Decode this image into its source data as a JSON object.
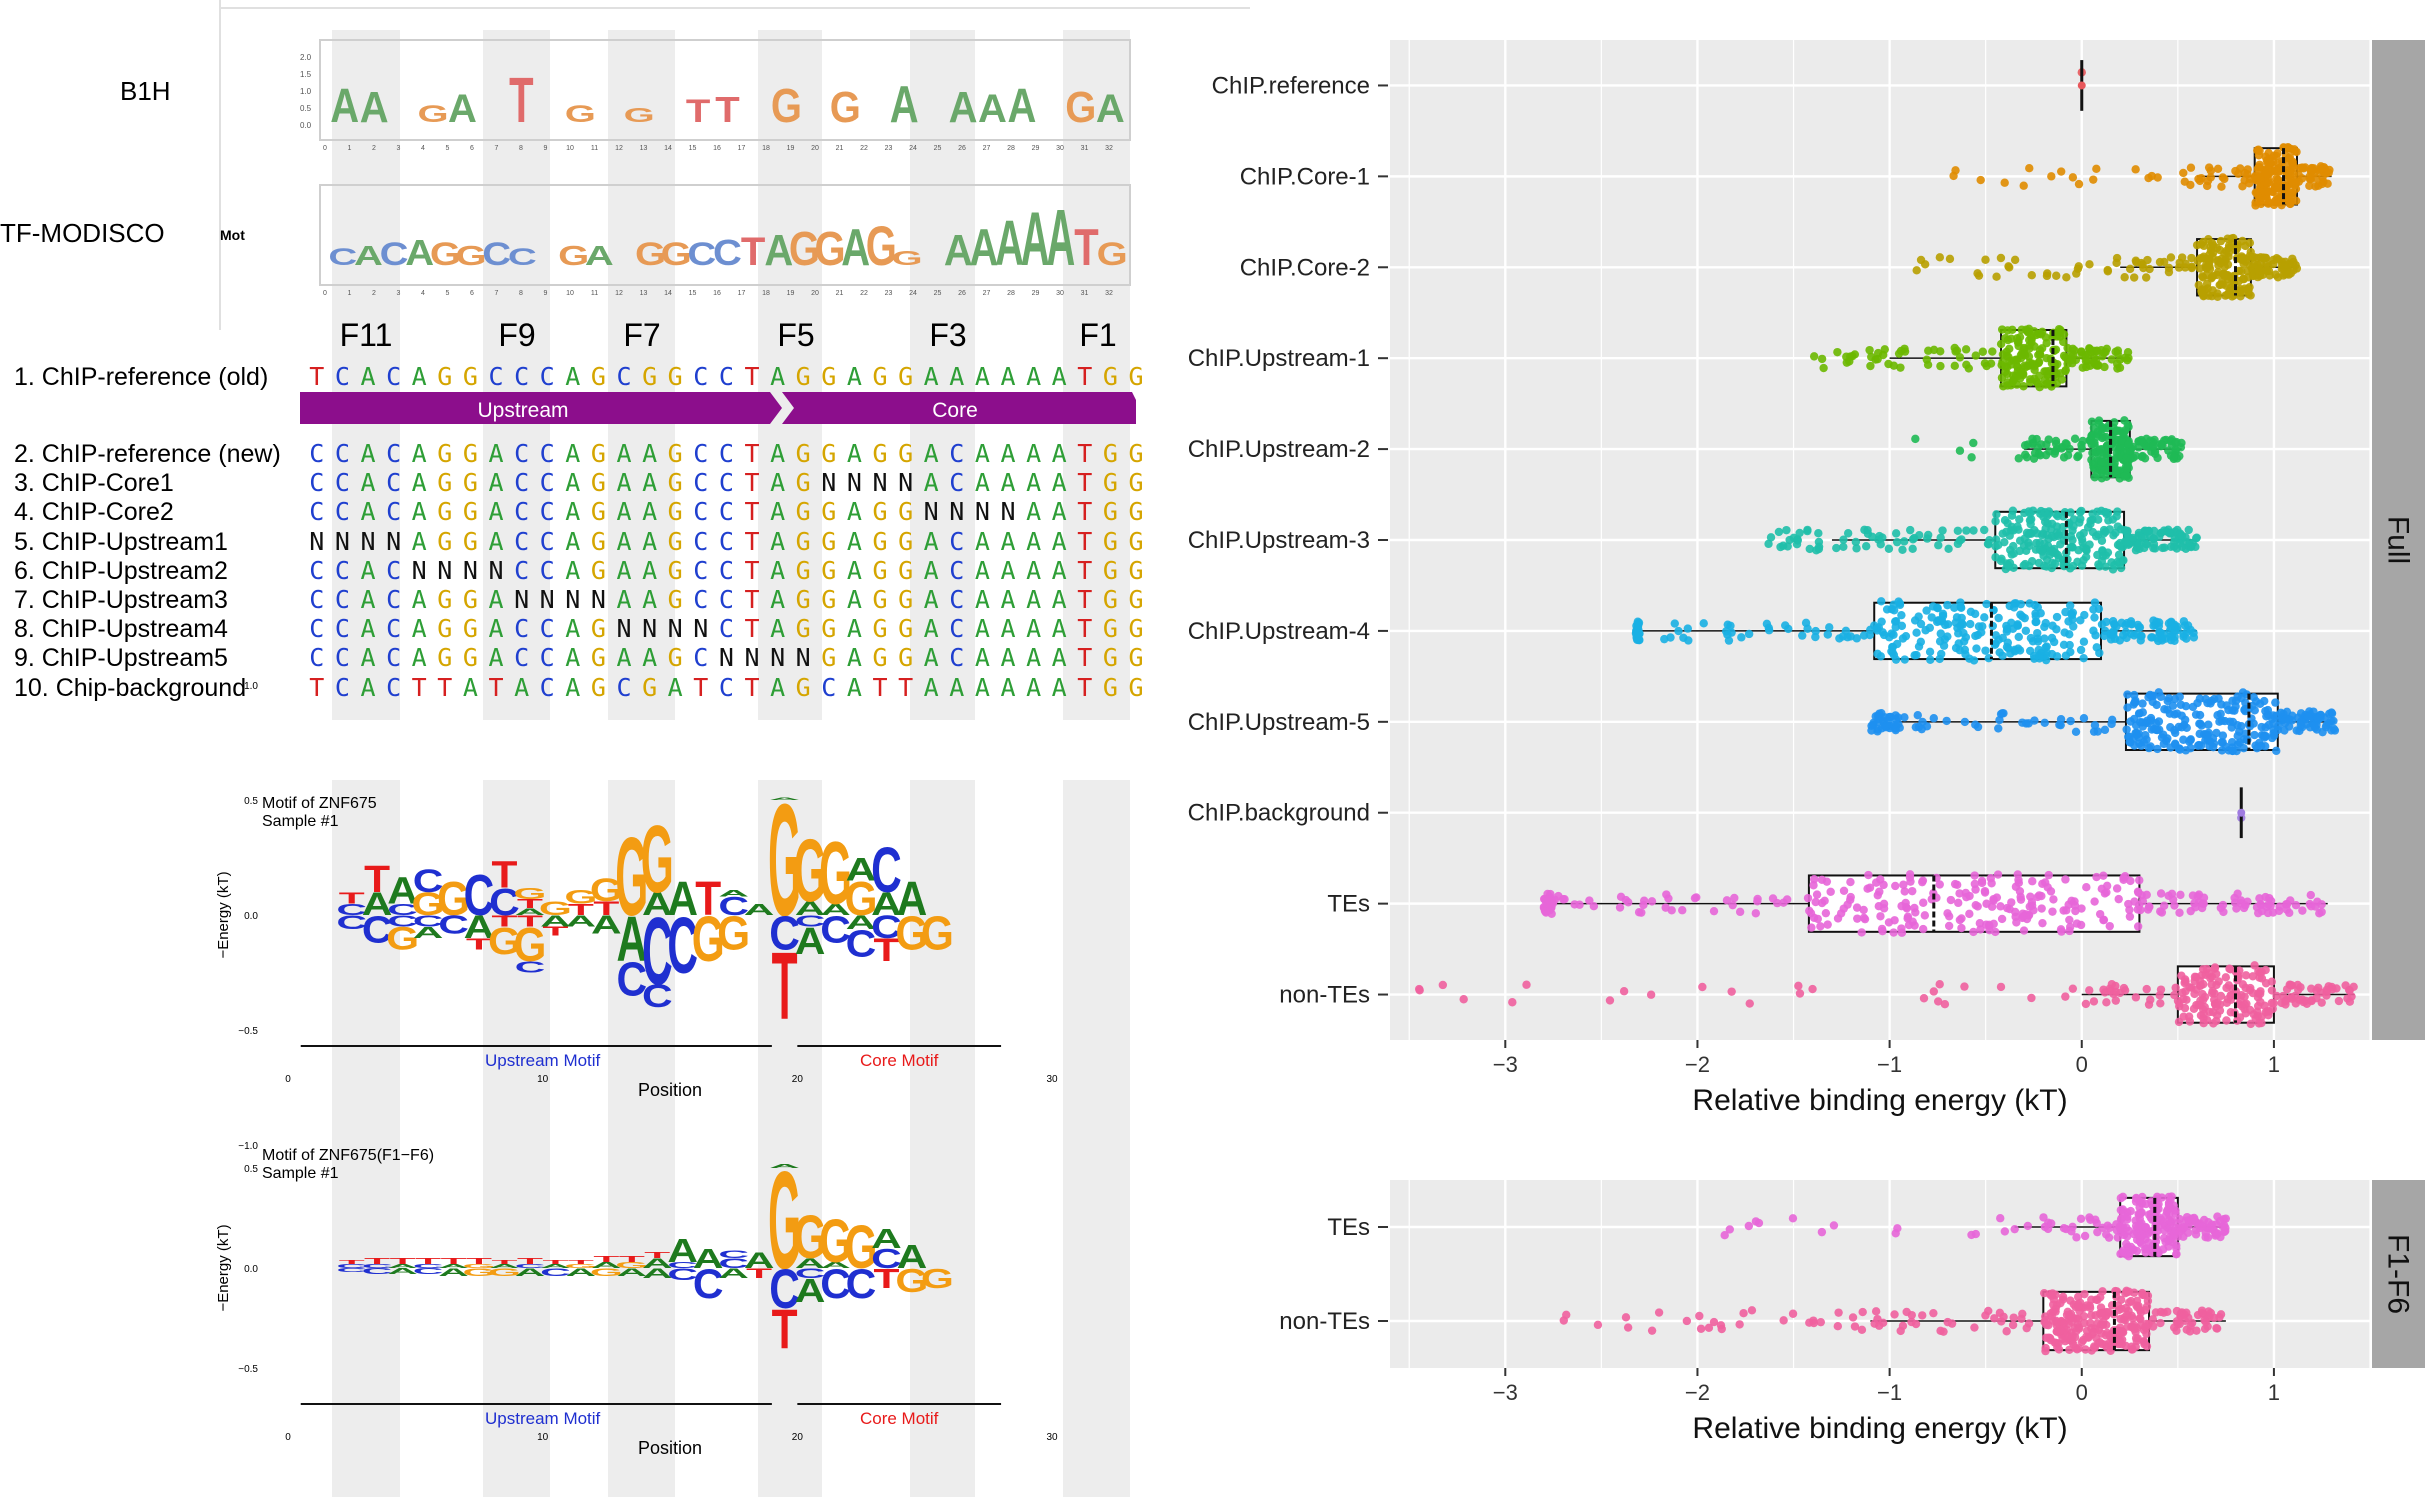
{
  "motifs": {
    "row_labels": [
      "B1H",
      "TF-MODISCO"
    ],
    "finger_labels": [
      "F11",
      "F9",
      "F7",
      "F5",
      "F3",
      "F1"
    ],
    "b1h_axis_ticks": [
      "0.0",
      "0.5",
      "1.0",
      "1.5",
      "2.0"
    ],
    "modisco_side_label": "Mot",
    "pos_ticks": [
      "0",
      "1",
      "2",
      "3",
      "4",
      "5",
      "6",
      "7",
      "8",
      "9",
      "10",
      "11",
      "12",
      "13",
      "14",
      "15",
      "16",
      "17",
      "18",
      "19",
      "20",
      "21",
      "22",
      "23",
      "24",
      "25",
      "26",
      "27",
      "28",
      "29",
      "30",
      "31",
      "32"
    ],
    "b1h_letters": "AA GA T G G TT G G A AAA GA",
    "modisco_letters": "CACAGGCC GA GGCCTAGGAGG AAAAATG"
  },
  "sequences": {
    "rows": [
      {
        "label": "1. ChIP-reference (old)",
        "seq": "TCACAGGCCCAGCGGCCTAGGAGGAAAAAATGG"
      },
      {
        "label": "2. ChIP-reference (new)",
        "seq": "CCACAGGACCAGAAGCCTAGGAGGACAAAATGG"
      },
      {
        "label": "3. ChIP-Core1",
        "seq": "CCACAGGACCAGAAGCCTAGNNNNACAAAATGG"
      },
      {
        "label": "4. ChIP-Core2",
        "seq": "CCACAGGACCAGAAGCCTAGGAGGNNNNAATGG"
      },
      {
        "label": "5. ChIP-Upstream1",
        "seq": "NNNNAGGACCAGAAGCCTAGGAGGACAAAATGG"
      },
      {
        "label": "6. ChIP-Upstream2",
        "seq": "CCACNNNNCCAGAAGCCTAGGAGGACAAAATGG"
      },
      {
        "label": "7. ChIP-Upstream3",
        "seq": "CCACAGGANNNNAAGCCTAGGAGGACAAAATGG"
      },
      {
        "label": "8. ChIP-Upstream4",
        "seq": "CCACAGGACCAGNNNNCTAGGAGGACAAAATGG"
      },
      {
        "label": "9. ChIP-Upstream5",
        "seq": "CCACAGGACCAGAAGCNNNNGAGGACAAAATGG"
      },
      {
        "label": "10. Chip-background",
        "seq": "TCACTTATACAGCGATCTAGCATTAAAAAATGG"
      }
    ],
    "region_upstream": "Upstream",
    "region_core": "Core",
    "base_colors": {
      "A": "#2e9e36",
      "C": "#1f3fcf",
      "G": "#d5a500",
      "T": "#d62020",
      "N": "#111111"
    }
  },
  "logo1": {
    "title": "Motif of ZNF675",
    "subtitle": "Sample #1",
    "ylabel": "−Energy (kT)",
    "yticks": [
      "1.0",
      "0.5",
      "0.0",
      "−0.5",
      "−1.0"
    ],
    "xticks": [
      "0",
      "10",
      "20",
      "30"
    ],
    "xlabel": "Position",
    "upstream_label": "Upstream Motif",
    "core_label": "Core Motif"
  },
  "logo2": {
    "title": "Motif of ZNF675(F1−F6)",
    "subtitle": "Sample #1",
    "ylabel": "−Energy (kT)",
    "yticks": [
      "0.5",
      "0.0",
      "−0.5"
    ],
    "xticks": [
      "0",
      "10",
      "20",
      "30"
    ],
    "xlabel": "Position",
    "upstream_label": "Upstream Motif",
    "core_label": "Core Motif"
  },
  "chart_data": [
    {
      "type": "box",
      "facet": "Full",
      "xlabel": "Relative binding energy (kT)",
      "xticks": [
        -3,
        -2,
        -1,
        0,
        1
      ],
      "xlim": [
        -3.6,
        1.5
      ],
      "categories": [
        "ChIP.reference",
        "ChIP.Core-1",
        "ChIP.Core-2",
        "ChIP.Upstream-1",
        "ChIP.Upstream-2",
        "ChIP.Upstream-3",
        "ChIP.Upstream-4",
        "ChIP.Upstream-5",
        "ChIP.background",
        "TEs",
        "non-TEs"
      ],
      "series": [
        {
          "category": "ChIP.reference",
          "color": "#e8585c",
          "q1": 0.0,
          "median": 0.0,
          "q3": 0.0,
          "whisker_low": 0.0,
          "whisker_high": 0.0,
          "min": 0.0,
          "max": 0.0
        },
        {
          "category": "ChIP.Core-1",
          "color": "#e08c00",
          "q1": 0.9,
          "median": 1.05,
          "q3": 1.12,
          "whisker_low": 0.6,
          "whisker_high": 1.3,
          "min": -0.75,
          "max": 1.3
        },
        {
          "category": "ChIP.Core-2",
          "color": "#b8a000",
          "q1": 0.6,
          "median": 0.8,
          "q3": 0.88,
          "whisker_low": 0.2,
          "whisker_high": 1.12,
          "min": -0.9,
          "max": 1.12
        },
        {
          "category": "ChIP.Upstream-1",
          "color": "#6cb800",
          "q1": -0.42,
          "median": -0.15,
          "q3": -0.08,
          "whisker_low": -1.0,
          "whisker_high": 0.25,
          "min": -1.4,
          "max": 0.25
        },
        {
          "category": "ChIP.Upstream-2",
          "color": "#1fba55",
          "q1": 0.05,
          "median": 0.15,
          "q3": 0.25,
          "whisker_low": -0.3,
          "whisker_high": 0.52,
          "min": -1.2,
          "max": 0.52
        },
        {
          "category": "ChIP.Upstream-3",
          "color": "#1fbfaa",
          "q1": -0.45,
          "median": -0.08,
          "q3": 0.22,
          "whisker_low": -1.3,
          "whisker_high": 0.6,
          "min": -1.65,
          "max": 0.6
        },
        {
          "category": "ChIP.Upstream-4",
          "color": "#1ab0e3",
          "q1": -1.08,
          "median": -0.47,
          "q3": 0.1,
          "whisker_low": -2.3,
          "whisker_high": 0.6,
          "min": -2.32,
          "max": 0.6
        },
        {
          "category": "ChIP.Upstream-5",
          "color": "#1e90f0",
          "q1": 0.23,
          "median": 0.87,
          "q3": 1.02,
          "whisker_low": -0.95,
          "whisker_high": 1.32,
          "min": -1.1,
          "max": 1.32
        },
        {
          "category": "ChIP.background",
          "color": "#9f7be0",
          "q1": 0.83,
          "median": 0.83,
          "q3": 0.83,
          "whisker_low": 0.83,
          "whisker_high": 0.83,
          "min": 0.83,
          "max": 0.83
        },
        {
          "category": "TEs",
          "color": "#e766d8",
          "q1": -1.42,
          "median": -0.77,
          "q3": 0.3,
          "whisker_low": -2.75,
          "whisker_high": 1.28,
          "min": -2.8,
          "max": 1.28
        },
        {
          "category": "non-TEs",
          "color": "#f0609e",
          "q1": 0.5,
          "median": 0.8,
          "q3": 1.0,
          "whisker_low": 0.0,
          "whisker_high": 1.42,
          "min": -3.45,
          "max": 1.42
        }
      ]
    },
    {
      "type": "box",
      "facet": "F1-F6",
      "xlabel": "Relative binding energy (kT)",
      "xticks": [
        -3,
        -2,
        -1,
        0,
        1
      ],
      "xlim": [
        -3.6,
        1.5
      ],
      "categories": [
        "TEs",
        "non-TEs"
      ],
      "series": [
        {
          "category": "TEs",
          "color": "#e766d8",
          "q1": 0.2,
          "median": 0.38,
          "q3": 0.5,
          "whisker_low": -0.35,
          "whisker_high": 0.75,
          "min": -2.05,
          "max": 0.75
        },
        {
          "category": "non-TEs",
          "color": "#f0609e",
          "q1": -0.2,
          "median": 0.17,
          "q3": 0.35,
          "whisker_low": -1.1,
          "whisker_high": 0.75,
          "min": -2.8,
          "max": 0.75
        }
      ]
    }
  ]
}
